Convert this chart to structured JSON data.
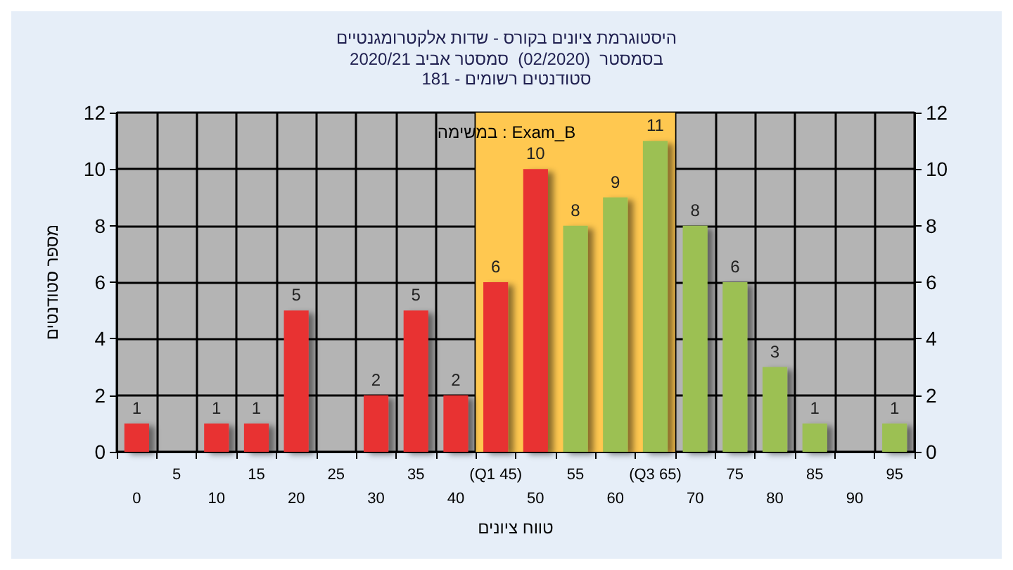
{
  "chart_data": {
    "type": "bar",
    "title": "היסטוגרמת ציונים בקורס - שדות אלקטרומגנטיים",
    "subtitle": "בסמסטר  (02/2020)  סמסטר אביב 2020/21\nסטודנטים רשומים - 181",
    "xlabel": "טווח ציונים",
    "ylabel": "מספר סטודנטים",
    "annotations": [
      "במשימה : Exam_B"
    ],
    "categories": [
      "0",
      "5",
      "10",
      "15",
      "20",
      "25",
      "30",
      "35",
      "40",
      "(Q1 45)",
      "50",
      "55",
      "60",
      "(Q3 65)",
      "70",
      "75",
      "80",
      "85",
      "90",
      "95"
    ],
    "values": [
      1,
      0,
      1,
      1,
      5,
      0,
      2,
      5,
      2,
      6,
      10,
      8,
      9,
      11,
      8,
      6,
      3,
      1,
      0,
      1
    ],
    "value_labels": [
      "1",
      null,
      "1",
      "1",
      "5",
      null,
      "2",
      "5",
      "2",
      "6",
      "10",
      "8",
      "9",
      "11",
      "8",
      "6",
      "3",
      "1",
      null,
      "1"
    ],
    "colors": [
      "#e83232",
      "#e83232",
      "#e83232",
      "#e83232",
      "#e83232",
      "#e83232",
      "#e83232",
      "#e83232",
      "#e83232",
      "#e83232",
      "#e83232",
      "#9cc052",
      "#9cc052",
      "#9cc052",
      "#9cc052",
      "#9cc052",
      "#9cc052",
      "#9cc052",
      "#9cc052",
      "#9cc052"
    ],
    "bands": [
      {
        "axis": "x",
        "from": "(Q1 45)",
        "to": "(Q3 65)",
        "color": "#ffc850"
      }
    ],
    "ylim": [
      0,
      12
    ],
    "yticks": [
      0,
      2,
      4,
      6,
      8,
      10,
      12
    ],
    "y2lim": [
      0,
      12
    ],
    "y2ticks": [
      0,
      2,
      4,
      6,
      8,
      10,
      12
    ],
    "grid": true
  }
}
